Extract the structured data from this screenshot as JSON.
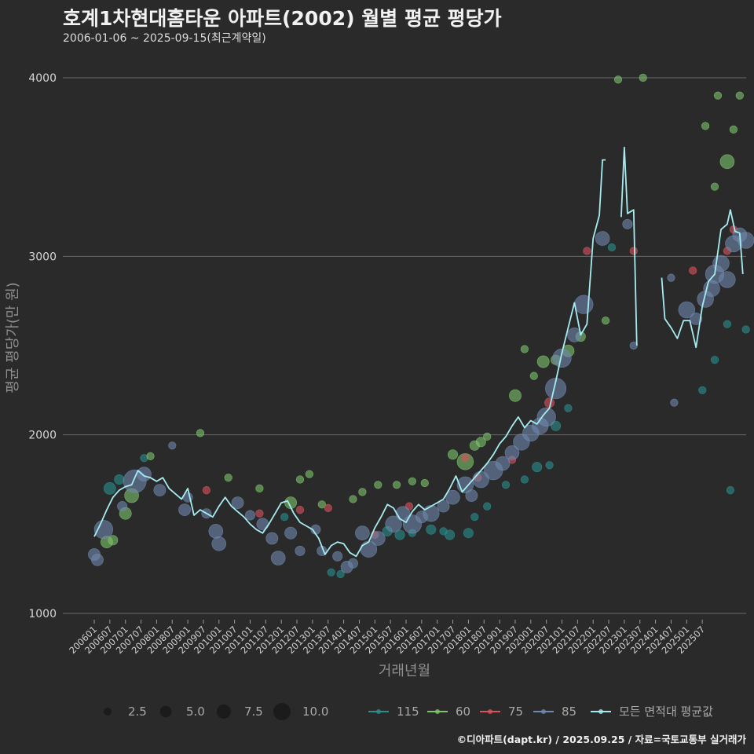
{
  "header": {
    "title": "호계1차현대홈타운 아파트(2002) 월별 평균 평당가",
    "subtitle": "2006-01-06 ~ 2025-09-15(최근계약일)",
    "credit": "©디아파트(dapt.kr) / 2025.09.25 / 자료=국토교통부 실거래가"
  },
  "chart_data": {
    "type": "line",
    "title": "호계1차현대홈타운 아파트(2002) 월별 평균 평당가",
    "xlabel": "거래년월",
    "ylabel": "평균 평당가(만 원)",
    "ylim": [
      950,
      4080
    ],
    "y_ticks": [
      1000,
      2000,
      3000,
      4000
    ],
    "x_tick_labels": [
      "200601",
      "200607",
      "200701",
      "200707",
      "200801",
      "200807",
      "200901",
      "200907",
      "201001",
      "201007",
      "201101",
      "201107",
      "201201",
      "201207",
      "201301",
      "201307",
      "201401",
      "201407",
      "201501",
      "201507",
      "201601",
      "201607",
      "201701",
      "201707",
      "201801",
      "201807",
      "201901",
      "201907",
      "202001",
      "202007",
      "202101",
      "202107",
      "202201",
      "202207",
      "202301",
      "202307",
      "202401",
      "202407",
      "202501",
      "202507"
    ],
    "colors": {
      "115": "#2a8f8c",
      "60": "#7fc46a",
      "75": "#d9545b",
      "85": "#6f88ad",
      "average": "#a6ecef",
      "grid": "#6a6a6a",
      "background": "#2a2a2b"
    },
    "size_legend": {
      "title": "",
      "values": [
        "2.5",
        "5.0",
        "7.5",
        "10.0"
      ]
    },
    "color_legend": {
      "items": [
        "115",
        "60",
        "75",
        "85",
        "모든 면적대 평균값"
      ]
    },
    "average_series": {
      "name": "모든 면적대 평균값",
      "points": [
        [
          2006.0,
          1430
        ],
        [
          2006.2,
          1500
        ],
        [
          2006.4,
          1580
        ],
        [
          2006.6,
          1650
        ],
        [
          2006.8,
          1690
        ],
        [
          2007.0,
          1710
        ],
        [
          2007.2,
          1720
        ],
        [
          2007.4,
          1800
        ],
        [
          2007.6,
          1770
        ],
        [
          2007.8,
          1760
        ],
        [
          2008.0,
          1740
        ],
        [
          2008.2,
          1760
        ],
        [
          2008.4,
          1700
        ],
        [
          2008.6,
          1670
        ],
        [
          2008.8,
          1640
        ],
        [
          2009.0,
          1700
        ],
        [
          2009.2,
          1550
        ],
        [
          2009.4,
          1580
        ],
        [
          2009.6,
          1560
        ],
        [
          2009.8,
          1540
        ],
        [
          2010.0,
          1600
        ],
        [
          2010.2,
          1650
        ],
        [
          2010.4,
          1600
        ],
        [
          2010.6,
          1570
        ],
        [
          2010.8,
          1540
        ],
        [
          2011.0,
          1500
        ],
        [
          2011.2,
          1470
        ],
        [
          2011.4,
          1450
        ],
        [
          2011.6,
          1500
        ],
        [
          2011.8,
          1560
        ],
        [
          2012.0,
          1620
        ],
        [
          2012.2,
          1630
        ],
        [
          2012.4,
          1560
        ],
        [
          2012.6,
          1510
        ],
        [
          2012.8,
          1490
        ],
        [
          2013.0,
          1470
        ],
        [
          2013.2,
          1420
        ],
        [
          2013.4,
          1330
        ],
        [
          2013.6,
          1380
        ],
        [
          2013.8,
          1400
        ],
        [
          2014.0,
          1390
        ],
        [
          2014.2,
          1340
        ],
        [
          2014.4,
          1320
        ],
        [
          2014.6,
          1380
        ],
        [
          2014.8,
          1400
        ],
        [
          2015.0,
          1480
        ],
        [
          2015.2,
          1540
        ],
        [
          2015.4,
          1610
        ],
        [
          2015.6,
          1590
        ],
        [
          2015.8,
          1530
        ],
        [
          2016.0,
          1510
        ],
        [
          2016.2,
          1570
        ],
        [
          2016.4,
          1610
        ],
        [
          2016.6,
          1580
        ],
        [
          2016.8,
          1600
        ],
        [
          2017.0,
          1620
        ],
        [
          2017.2,
          1640
        ],
        [
          2017.4,
          1700
        ],
        [
          2017.6,
          1770
        ],
        [
          2017.8,
          1680
        ],
        [
          2018.0,
          1720
        ],
        [
          2018.2,
          1760
        ],
        [
          2018.4,
          1800
        ],
        [
          2018.6,
          1840
        ],
        [
          2018.8,
          1890
        ],
        [
          2019.0,
          1950
        ],
        [
          2019.2,
          1990
        ],
        [
          2019.4,
          2050
        ],
        [
          2019.6,
          2100
        ],
        [
          2019.8,
          2040
        ],
        [
          2020.0,
          2080
        ],
        [
          2020.2,
          2060
        ],
        [
          2020.4,
          2110
        ],
        [
          2020.6,
          2150
        ],
        [
          2020.8,
          2300
        ],
        [
          2021.0,
          2460
        ],
        [
          2021.2,
          2600
        ],
        [
          2021.4,
          2740
        ],
        [
          2021.6,
          2560
        ],
        [
          2021.8,
          2620
        ],
        [
          2022.0,
          3100
        ],
        [
          2022.2,
          3230
        ],
        [
          2022.3,
          3540
        ],
        [
          2022.4,
          3540
        ],
        null,
        [
          2022.9,
          3220
        ],
        [
          2023.0,
          3610
        ],
        [
          2023.1,
          3240
        ],
        [
          2023.3,
          3260
        ],
        [
          2023.4,
          2500
        ],
        null,
        [
          2024.2,
          2880
        ],
        [
          2024.3,
          2650
        ],
        [
          2024.5,
          2600
        ],
        [
          2024.7,
          2540
        ],
        [
          2024.9,
          2640
        ],
        [
          2025.1,
          2640
        ],
        [
          2025.3,
          2490
        ],
        [
          2025.5,
          2720
        ],
        [
          2025.7,
          2860
        ],
        [
          2025.9,
          2900
        ],
        [
          2026.1,
          3150
        ],
        [
          2026.3,
          3180
        ],
        [
          2026.4,
          3260
        ],
        [
          2026.55,
          3140
        ],
        [
          2026.7,
          3130
        ],
        [
          2026.8,
          2900
        ]
      ]
    },
    "scatter_series": [
      {
        "name": "115",
        "points": [
          [
            2006.5,
            1700,
            4
          ],
          [
            2006.8,
            1750,
            3
          ],
          [
            2007.6,
            1870,
            2
          ],
          [
            2012.1,
            1540,
            2
          ],
          [
            2013.6,
            1230,
            2
          ],
          [
            2013.9,
            1220,
            2
          ],
          [
            2015.4,
            1460,
            3
          ],
          [
            2015.8,
            1440,
            3
          ],
          [
            2016.2,
            1450,
            2
          ],
          [
            2016.8,
            1470,
            3
          ],
          [
            2017.2,
            1460,
            2
          ],
          [
            2017.4,
            1440,
            3
          ],
          [
            2018.0,
            1450,
            3
          ],
          [
            2018.2,
            1540,
            2
          ],
          [
            2018.6,
            1600,
            2
          ],
          [
            2019.2,
            1720,
            2
          ],
          [
            2019.8,
            1750,
            2
          ],
          [
            2020.2,
            1820,
            3
          ],
          [
            2020.6,
            1830,
            2
          ],
          [
            2020.8,
            2050,
            3
          ],
          [
            2021.2,
            2150,
            2
          ],
          [
            2022.6,
            3050,
            2
          ],
          [
            2025.5,
            2250,
            2
          ],
          [
            2025.9,
            2420,
            2
          ],
          [
            2026.3,
            2620,
            2
          ],
          [
            2026.4,
            1690,
            2
          ],
          [
            2026.9,
            2590,
            2
          ]
        ]
      },
      {
        "name": "60",
        "points": [
          [
            2006.4,
            1400,
            4
          ],
          [
            2006.6,
            1410,
            3
          ],
          [
            2007.0,
            1560,
            4
          ],
          [
            2007.2,
            1660,
            5
          ],
          [
            2007.8,
            1880,
            2
          ],
          [
            2009.4,
            2010,
            2
          ],
          [
            2010.3,
            1760,
            2
          ],
          [
            2011.3,
            1700,
            2
          ],
          [
            2012.3,
            1620,
            4
          ],
          [
            2012.6,
            1750,
            2
          ],
          [
            2012.9,
            1780,
            2
          ],
          [
            2013.3,
            1610,
            2
          ],
          [
            2014.3,
            1640,
            2
          ],
          [
            2014.6,
            1680,
            2
          ],
          [
            2015.1,
            1720,
            2
          ],
          [
            2015.7,
            1720,
            2
          ],
          [
            2016.2,
            1740,
            2
          ],
          [
            2016.6,
            1730,
            2
          ],
          [
            2017.5,
            1890,
            3
          ],
          [
            2017.9,
            1850,
            6
          ],
          [
            2018.2,
            1940,
            3
          ],
          [
            2018.4,
            1960,
            3
          ],
          [
            2018.6,
            1990,
            2
          ],
          [
            2019.5,
            2220,
            4
          ],
          [
            2019.8,
            2480,
            2
          ],
          [
            2020.1,
            2330,
            2
          ],
          [
            2020.4,
            2410,
            4
          ],
          [
            2020.8,
            2420,
            3
          ],
          [
            2021.2,
            2470,
            4
          ],
          [
            2021.6,
            2550,
            3
          ],
          [
            2022.4,
            2640,
            2
          ],
          [
            2022.8,
            3990,
            2
          ],
          [
            2023.6,
            4000,
            2
          ],
          [
            2025.6,
            3730,
            2
          ],
          [
            2025.9,
            3390,
            2
          ],
          [
            2026.0,
            3900,
            2
          ],
          [
            2026.3,
            3530,
            5
          ],
          [
            2026.5,
            3710,
            2
          ],
          [
            2026.7,
            3900,
            2
          ]
        ]
      },
      {
        "name": "75",
        "points": [
          [
            2009.6,
            1690,
            2
          ],
          [
            2011.3,
            1560,
            2
          ],
          [
            2012.6,
            1580,
            2
          ],
          [
            2013.5,
            1590,
            2
          ],
          [
            2015.0,
            1440,
            2
          ],
          [
            2016.1,
            1600,
            2
          ],
          [
            2017.9,
            1870,
            2
          ],
          [
            2018.3,
            1760,
            2
          ],
          [
            2019.4,
            1860,
            2
          ],
          [
            2020.6,
            2180,
            3
          ],
          [
            2021.8,
            3030,
            2
          ],
          [
            2023.3,
            3030,
            2
          ],
          [
            2025.2,
            2920,
            2
          ],
          [
            2026.3,
            3030,
            2
          ],
          [
            2026.5,
            3150,
            2
          ]
        ]
      },
      {
        "name": "85",
        "points": [
          [
            2006.0,
            1330,
            4
          ],
          [
            2006.1,
            1300,
            4
          ],
          [
            2006.3,
            1470,
            7
          ],
          [
            2006.9,
            1600,
            3
          ],
          [
            2007.3,
            1740,
            9
          ],
          [
            2007.6,
            1780,
            5
          ],
          [
            2008.1,
            1690,
            4
          ],
          [
            2008.5,
            1940,
            2
          ],
          [
            2008.9,
            1580,
            4
          ],
          [
            2009.0,
            1650,
            3
          ],
          [
            2009.6,
            1560,
            3
          ],
          [
            2009.9,
            1460,
            5
          ],
          [
            2010.0,
            1390,
            5
          ],
          [
            2010.6,
            1620,
            4
          ],
          [
            2011.0,
            1550,
            3
          ],
          [
            2011.4,
            1500,
            4
          ],
          [
            2011.7,
            1420,
            4
          ],
          [
            2011.9,
            1310,
            5
          ],
          [
            2012.3,
            1450,
            4
          ],
          [
            2012.6,
            1350,
            3
          ],
          [
            2013.1,
            1470,
            3
          ],
          [
            2013.3,
            1350,
            3
          ],
          [
            2013.8,
            1320,
            3
          ],
          [
            2014.1,
            1260,
            4
          ],
          [
            2014.3,
            1280,
            3
          ],
          [
            2014.6,
            1450,
            5
          ],
          [
            2014.8,
            1360,
            6
          ],
          [
            2015.1,
            1420,
            5
          ],
          [
            2015.6,
            1500,
            6
          ],
          [
            2015.9,
            1560,
            5
          ],
          [
            2016.2,
            1500,
            7
          ],
          [
            2016.5,
            1540,
            4
          ],
          [
            2016.8,
            1560,
            6
          ],
          [
            2017.2,
            1600,
            4
          ],
          [
            2017.5,
            1650,
            5
          ],
          [
            2017.9,
            1720,
            6
          ],
          [
            2018.1,
            1660,
            4
          ],
          [
            2018.4,
            1750,
            6
          ],
          [
            2018.8,
            1800,
            7
          ],
          [
            2019.1,
            1840,
            5
          ],
          [
            2019.4,
            1900,
            5
          ],
          [
            2019.7,
            1960,
            6
          ],
          [
            2020.0,
            2010,
            6
          ],
          [
            2020.3,
            2050,
            6
          ],
          [
            2020.5,
            2100,
            7
          ],
          [
            2020.8,
            2260,
            8
          ],
          [
            2021.0,
            2430,
            7
          ],
          [
            2021.4,
            2560,
            5
          ],
          [
            2021.7,
            2730,
            7
          ],
          [
            2022.3,
            3100,
            5
          ],
          [
            2023.1,
            3180,
            3
          ],
          [
            2023.3,
            2500,
            2
          ],
          [
            2024.5,
            2880,
            2
          ],
          [
            2024.6,
            2180,
            2
          ],
          [
            2025.0,
            2700,
            6
          ],
          [
            2025.3,
            2650,
            4
          ],
          [
            2025.6,
            2760,
            6
          ],
          [
            2025.8,
            2820,
            6
          ],
          [
            2025.9,
            2900,
            7
          ],
          [
            2026.1,
            2960,
            6
          ],
          [
            2026.3,
            2870,
            6
          ],
          [
            2026.5,
            3070,
            6
          ],
          [
            2026.7,
            3120,
            5
          ],
          [
            2026.9,
            3090,
            6
          ]
        ]
      }
    ]
  }
}
